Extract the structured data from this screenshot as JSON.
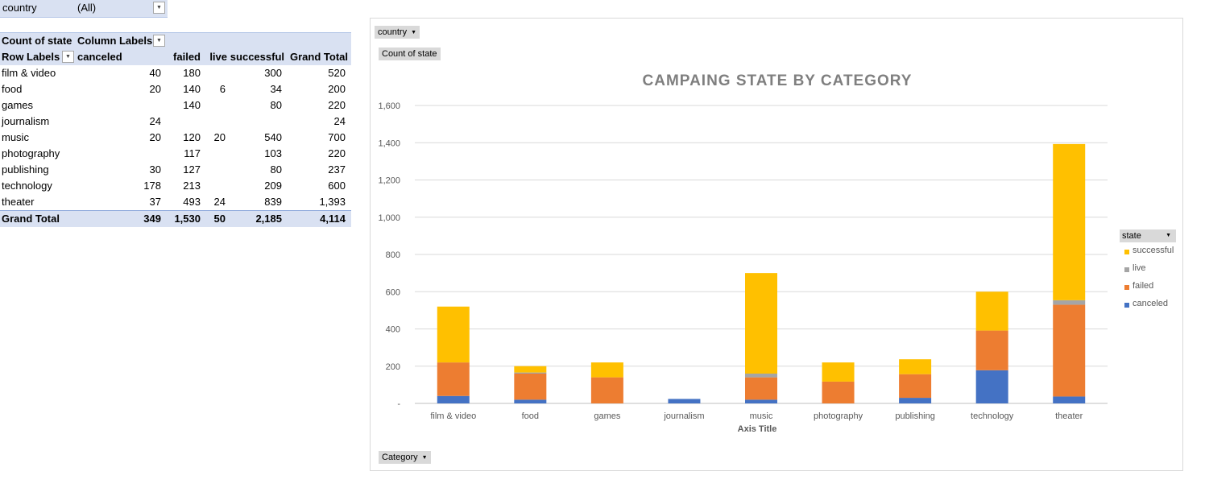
{
  "filter": {
    "label": "country",
    "value": "(All)"
  },
  "pivot": {
    "corner_label": "Count of state",
    "column_labels": "Column Labels",
    "row_labels": "Row Labels",
    "columns": [
      "canceled",
      "failed",
      "live",
      "successful",
      "Grand Total"
    ],
    "rows": [
      {
        "label": "film & video",
        "canceled": "40",
        "failed": "180",
        "live": "",
        "successful": "300",
        "total": "520"
      },
      {
        "label": "food",
        "canceled": "20",
        "failed": "140",
        "live": "6",
        "successful": "34",
        "total": "200"
      },
      {
        "label": "games",
        "canceled": "",
        "failed": "140",
        "live": "",
        "successful": "80",
        "total": "220"
      },
      {
        "label": "journalism",
        "canceled": "24",
        "failed": "",
        "live": "",
        "successful": "",
        "total": "24"
      },
      {
        "label": "music",
        "canceled": "20",
        "failed": "120",
        "live": "20",
        "successful": "540",
        "total": "700"
      },
      {
        "label": "photography",
        "canceled": "",
        "failed": "117",
        "live": "",
        "successful": "103",
        "total": "220"
      },
      {
        "label": "publishing",
        "canceled": "30",
        "failed": "127",
        "live": "",
        "successful": "80",
        "total": "237"
      },
      {
        "label": "technology",
        "canceled": "178",
        "failed": "213",
        "live": "",
        "successful": "209",
        "total": "600"
      },
      {
        "label": "theater",
        "canceled": "37",
        "failed": "493",
        "live": "24",
        "successful": "839",
        "total": "1,393"
      }
    ],
    "grand_total": {
      "label": "Grand Total",
      "canceled": "349",
      "failed": "1,530",
      "live": "50",
      "successful": "2,185",
      "total": "4,114"
    }
  },
  "chart_buttons": {
    "country": "country",
    "count": "Count of state",
    "category": "Category"
  },
  "legend_title": "state",
  "colors": {
    "canceled": "#4472c4",
    "failed": "#ed7d31",
    "live": "#a5a5a5",
    "successful": "#ffc000"
  },
  "chart_data": {
    "type": "bar",
    "stacked": true,
    "title": "CAMPAING STATE BY CATEGORY",
    "xlabel": "Axis Title",
    "ylabel": "",
    "ylim": [
      0,
      1600
    ],
    "yticks": [
      0,
      200,
      400,
      600,
      800,
      1000,
      1200,
      1400,
      1600
    ],
    "ytick_labels": [
      "-",
      "200",
      "400",
      "600",
      "800",
      "1,000",
      "1,200",
      "1,400",
      "1,600"
    ],
    "categories": [
      "film & video",
      "food",
      "games",
      "journalism",
      "music",
      "photography",
      "publishing",
      "technology",
      "theater"
    ],
    "series": [
      {
        "name": "canceled",
        "values": [
          40,
          20,
          0,
          24,
          20,
          0,
          30,
          178,
          37
        ]
      },
      {
        "name": "failed",
        "values": [
          180,
          140,
          140,
          0,
          120,
          117,
          127,
          213,
          493
        ]
      },
      {
        "name": "live",
        "values": [
          0,
          6,
          0,
          0,
          20,
          0,
          0,
          0,
          24
        ]
      },
      {
        "name": "successful",
        "values": [
          300,
          34,
          80,
          0,
          540,
          103,
          80,
          209,
          839
        ]
      }
    ],
    "legend_order": [
      "successful",
      "live",
      "failed",
      "canceled"
    ],
    "legend_position": "right",
    "grid": true
  }
}
